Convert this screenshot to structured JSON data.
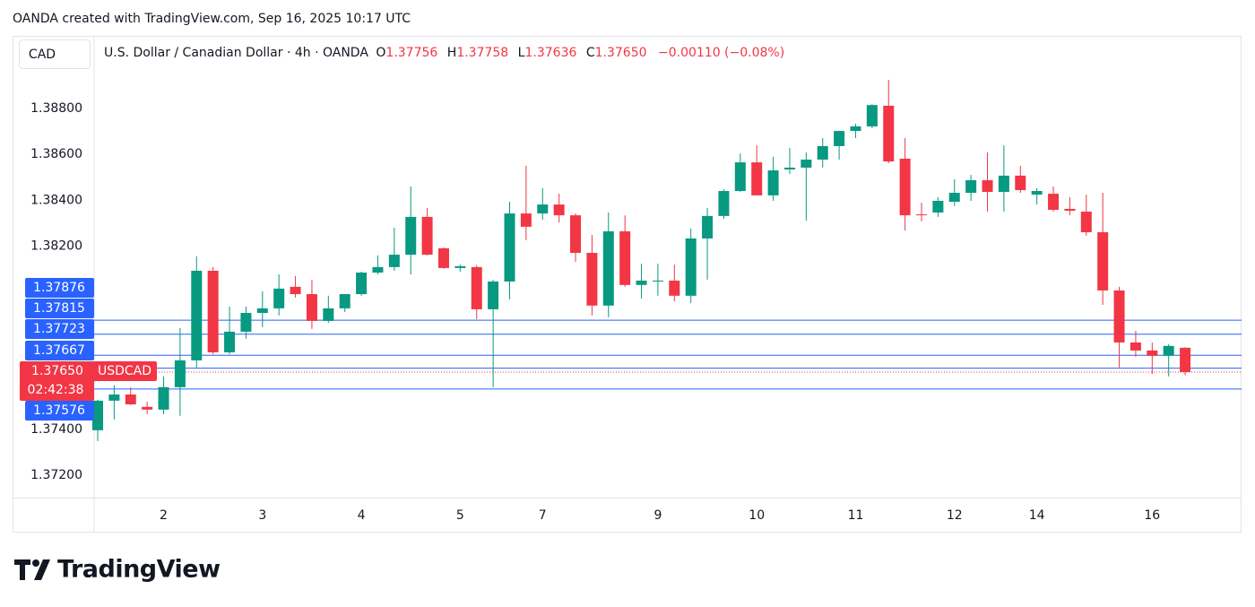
{
  "chart_data": {
    "type": "candlestick",
    "attribution": "OANDA created with TradingView.com, Sep 16, 2025 10:17 UTC",
    "currency": "CAD",
    "title": "U.S. Dollar / Canadian Dollar · 4h · OANDA",
    "change": "−0.00110 (−0.08%)",
    "symbol": "USDCAD",
    "countdown": "02:42:38",
    "brand": "TradingView",
    "up_color": "#089981",
    "down_color": "#f23645",
    "line_color": "#2962ff",
    "categories": [
      null,
      null,
      null,
      null,
      "2",
      null,
      null,
      null,
      null,
      null,
      "3",
      null,
      null,
      null,
      null,
      null,
      "4",
      null,
      null,
      null,
      null,
      null,
      "5",
      null,
      null,
      null,
      null,
      "7",
      null,
      null,
      null,
      null,
      null,
      null,
      "9",
      null,
      null,
      null,
      null,
      null,
      "10",
      null,
      null,
      null,
      null,
      null,
      "11",
      null,
      null,
      null,
      null,
      null,
      "12",
      null,
      null,
      null,
      null,
      "14",
      null,
      null,
      null,
      null,
      null,
      null,
      "16",
      null,
      null
    ],
    "open": [
      1.37396,
      1.37525,
      1.37552,
      1.37498,
      1.37486,
      1.37584,
      1.37701,
      1.38092,
      1.37736,
      1.37826,
      1.37908,
      1.37928,
      1.38022,
      1.3799,
      1.37873,
      1.37928,
      1.3799,
      1.38084,
      1.38108,
      1.38162,
      1.38327,
      1.3819,
      1.38104,
      1.38108,
      1.37924,
      1.38045,
      1.38342,
      1.38342,
      1.38381,
      1.38334,
      1.3817,
      1.3794,
      1.38264,
      1.3803,
      1.38045,
      1.38049,
      1.37983,
      1.38233,
      1.38331,
      1.3844,
      1.38565,
      1.38421,
      1.38534,
      1.38542,
      1.38577,
      1.38636,
      1.38702,
      1.38722,
      1.38812,
      1.38581,
      1.38338,
      1.38346,
      1.38393,
      1.38432,
      1.38487,
      1.38436,
      1.38507,
      1.38424,
      1.38428,
      1.38362,
      1.3835,
      1.3826,
      1.38006,
      1.37779,
      1.37744,
      1.37721,
      1.37756
    ],
    "high": [
      1.37529,
      1.37592,
      1.37584,
      1.37521,
      1.37631,
      1.37842,
      1.38155,
      1.38108,
      1.37936,
      1.37936,
      1.38002,
      1.38076,
      1.38069,
      1.38053,
      1.37983,
      1.3799,
      1.38088,
      1.38159,
      1.3828,
      1.3846,
      1.38366,
      1.38194,
      1.38119,
      1.38116,
      1.38053,
      1.38393,
      1.3855,
      1.38452,
      1.38428,
      1.38342,
      1.38248,
      1.38346,
      1.38334,
      1.38123,
      1.38123,
      1.38119,
      1.38276,
      1.38366,
      1.38448,
      1.38604,
      1.38639,
      1.38589,
      1.38628,
      1.38608,
      1.38671,
      1.38702,
      1.38733,
      1.38819,
      1.38925,
      1.38671,
      1.38389,
      1.38413,
      1.38491,
      1.3851,
      1.38608,
      1.38639,
      1.3855,
      1.38452,
      1.3846,
      1.38413,
      1.38424,
      1.38432,
      1.38022,
      1.3783,
      1.37779,
      1.37771,
      1.37758
    ],
    "low": [
      1.37349,
      1.37443,
      1.37506,
      1.37466,
      1.37466,
      1.37459,
      1.3767,
      1.37728,
      1.37728,
      1.37795,
      1.37846,
      1.37897,
      1.37975,
      1.37838,
      1.37865,
      1.37912,
      1.37983,
      1.38076,
      1.38092,
      1.38076,
      1.38159,
      1.381,
      1.38088,
      1.37881,
      1.37584,
      1.37967,
      1.38225,
      1.38315,
      1.38303,
      1.38131,
      1.37897,
      1.37889,
      1.38022,
      1.37971,
      1.37983,
      1.37959,
      1.37951,
      1.38053,
      1.38319,
      1.38436,
      1.38421,
      1.38397,
      1.38514,
      1.38311,
      1.38542,
      1.38577,
      1.38671,
      1.38714,
      1.38561,
      1.38268,
      1.38307,
      1.38327,
      1.38374,
      1.38397,
      1.3835,
      1.3835,
      1.38432,
      1.38381,
      1.3835,
      1.38334,
      1.38245,
      1.37943,
      1.3767,
      1.37717,
      1.37642,
      1.37631,
      1.37636
    ],
    "close": [
      1.37525,
      1.37552,
      1.37509,
      1.37486,
      1.37584,
      1.37701,
      1.38092,
      1.37736,
      1.37826,
      1.37908,
      1.37928,
      1.38014,
      1.3799,
      1.37873,
      1.37928,
      1.3799,
      1.38084,
      1.38108,
      1.38162,
      1.38327,
      1.38162,
      1.38104,
      1.38112,
      1.37924,
      1.38045,
      1.38342,
      1.38284,
      1.38381,
      1.38334,
      1.3817,
      1.3794,
      1.38264,
      1.3803,
      1.38049,
      1.38049,
      1.37983,
      1.38233,
      1.38331,
      1.3844,
      1.38565,
      1.38421,
      1.3853,
      1.38542,
      1.38577,
      1.38636,
      1.38702,
      1.38722,
      1.38815,
      1.38569,
      1.38334,
      1.38334,
      1.38397,
      1.38432,
      1.38487,
      1.38436,
      1.38507,
      1.38444,
      1.3844,
      1.38358,
      1.38354,
      1.3826,
      1.38006,
      1.37779,
      1.37744,
      1.37721,
      1.37764,
      1.3765
    ],
    "last_price": {
      "value": 1.3765,
      "label": "1.37650"
    },
    "price_lines": [
      1.37876,
      1.37815,
      1.37723,
      1.37667,
      1.37576
    ],
    "ylim": [
      1.37102,
      1.39117
    ],
    "yticks": [
      {
        "value": 1.372,
        "label": "1.37200"
      },
      {
        "value": 1.374,
        "label": "1.37400"
      },
      {
        "value": 1.382,
        "label": "1.38200"
      },
      {
        "value": 1.384,
        "label": "1.38400"
      },
      {
        "value": 1.386,
        "label": "1.38600"
      },
      {
        "value": 1.388,
        "label": "1.38800"
      }
    ],
    "grid": false
  }
}
